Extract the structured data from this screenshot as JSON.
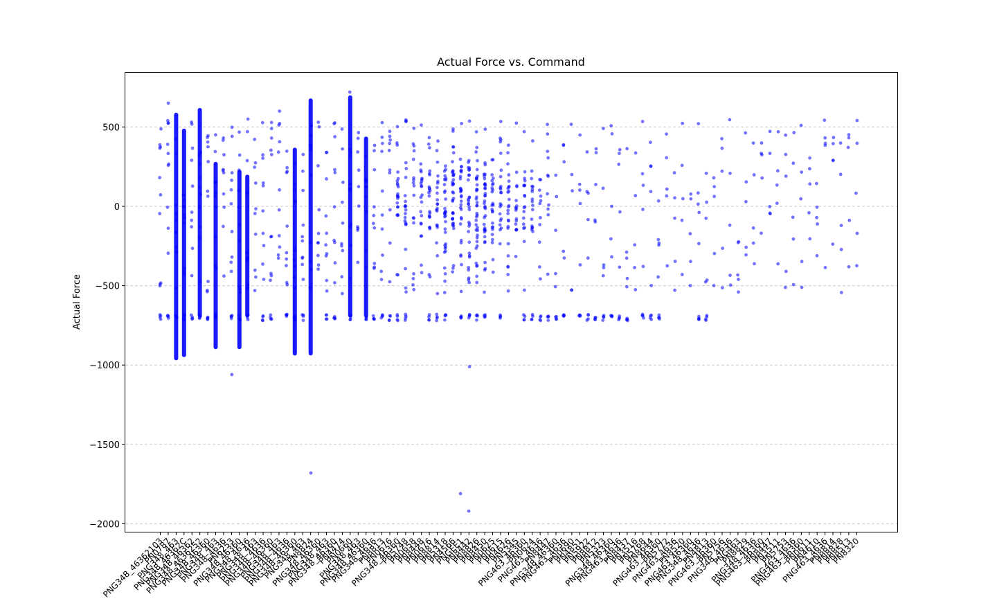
{
  "chart_data": {
    "type": "scatter",
    "title": "Actual Force vs. Command",
    "xlabel": "",
    "ylabel": "Actual Force",
    "ylim": [
      -2050,
      820
    ],
    "y_ticks": [
      500,
      0,
      -500,
      -1000,
      -1500,
      -2000
    ],
    "y_tick_labels": [
      "500",
      "0",
      "−500",
      "−1000",
      "−1500",
      "−2000"
    ],
    "grid": "y-dashed",
    "marker_color": "#0000ff",
    "x_tick_count": 89,
    "x_tick_labels_visible": [
      "PNG348_46362103",
      "PN0787",
      "PNG348_463",
      "PNG348_46362C",
      "PNG348_46362",
      "PNG348_4636252",
      "PNG348_46360",
      "PNG348_463",
      "PNG348_4636",
      "PN6253",
      "PNG348_46360",
      "PNG348_4636",
      "PNG348_463",
      "PNG348_4636",
      "PNG348_46360",
      "PNG348_463",
      "PNG348_4636",
      "PNG348_46360",
      "PNG348_463",
      "PN8824",
      "PNG348_46360",
      "PNG348_463",
      "PNG348_46360",
      "PN4474",
      "PN0660",
      "PNG348_463",
      "PNG348_46360",
      "PNG348_4636",
      "PN8813",
      "PN0676",
      "PNG348_46360",
      "PN5748",
      "PN0658",
      "PN8448",
      "PN0676",
      "PN8814",
      "PN5318",
      "PN4566",
      "PNGEE1",
      "PN8442",
      "PN8826",
      "PN8450",
      "PN0625",
      "PN0615",
      "PN4626",
      "PN5345",
      "PNG463_46360",
      "PN0624",
      "PNG463_4636",
      "PN8447",
      "PNG348_46360",
      "PNG463_4636",
      "PN0690",
      "PN4851",
      "PN5922",
      "PN8812",
      "PN5323",
      "PNG348_46360",
      "PNG463_4636",
      "PN8437",
      "PN3516",
      "PN5768",
      "PN8644",
      "PNG463_46360",
      "PN5772",
      "PNG463_4636",
      "PN8520",
      "PNG463_46360",
      "PNG348_4636",
      "PN4813",
      "PNG463_46360",
      "PN5756",
      "PNG348_4636",
      "PNG463",
      "PN8829",
      "PNG348_4636",
      "PNG463_46360",
      "PN8447",
      "PN3511",
      "PN5753",
      "PNG463_4636",
      "PNG463_46360",
      "PN0611",
      "PN4610",
      "PNG463_4636",
      "PN8814",
      "PN8828",
      "PN8513",
      "PN8320"
    ]
  }
}
